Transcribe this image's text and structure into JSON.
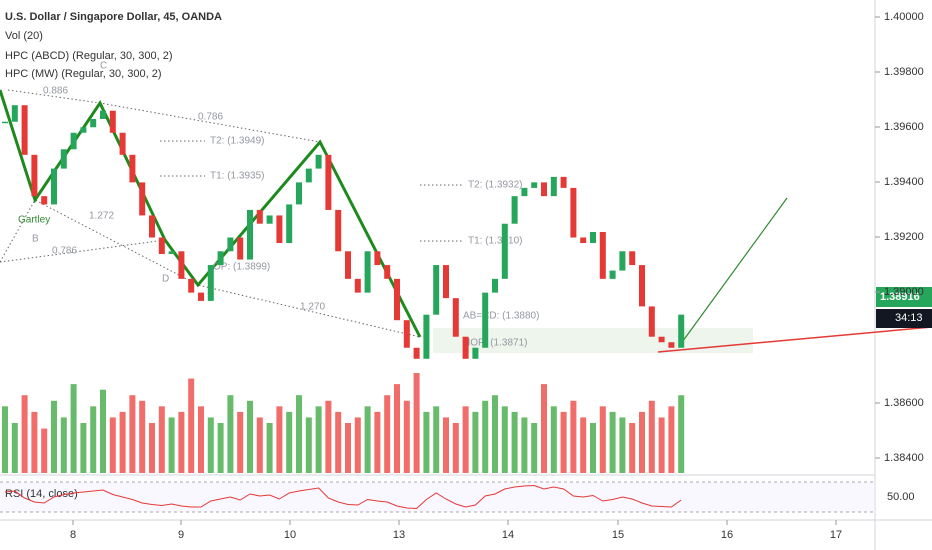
{
  "chart_data": {
    "type": "candlestick",
    "header": [
      "U.S. Dollar / Singapore Dollar, 45, OANDA",
      "Vol (20)",
      "HPC (ABCD) (Regular, 30, 300, 2)",
      "HPC (MW) (Regular, 30, 300, 2)"
    ],
    "price_labels": [
      "1.40000",
      "1.39800",
      "1.39600",
      "1.39400",
      "1.39200",
      "1.39000",
      "1.38600",
      "1.38400"
    ],
    "time_labels": [
      "8",
      "9",
      "10",
      "13",
      "14",
      "15",
      "16",
      "17"
    ],
    "pattern_labels": [
      "0.886",
      "C",
      "0.786",
      "T2: (1.3949)",
      "T1: (1.3935)",
      "Gartley",
      "B",
      "1.272",
      "0.786",
      "D",
      "OP: (1.3899)",
      "1.270",
      "T2: (1.3932)",
      "T1: (1.3910)",
      "AB=CD: (1.3880)",
      "HOP: (1.3871)"
    ],
    "last_price": "1.38916",
    "countdown": "34:13",
    "rsi_label": "RSI (14, close)",
    "rsi_level": "50.00",
    "ylim": [
      1.384,
      1.4
    ],
    "closes": [
      1.3962,
      1.3968,
      1.395,
      1.3935,
      1.3932,
      1.3945,
      1.3952,
      1.3958,
      1.396,
      1.3963,
      1.3966,
      1.3958,
      1.395,
      1.394,
      1.3928,
      1.392,
      1.3914,
      1.3915,
      1.3905,
      1.39,
      1.3897,
      1.391,
      1.3915,
      1.392,
      1.3912,
      1.393,
      1.3925,
      1.3928,
      1.3918,
      1.3932,
      1.394,
      1.3945,
      1.395,
      1.393,
      1.3915,
      1.3905,
      1.39,
      1.3915,
      1.391,
      1.3905,
      1.389,
      1.388,
      1.3876,
      1.3892,
      1.391,
      1.3898,
      1.3884,
      1.3876,
      1.388,
      1.39,
      1.3905,
      1.3925,
      1.3935,
      1.3938,
      1.394,
      1.3935,
      1.3942,
      1.3938,
      1.392,
      1.3918,
      1.3922,
      1.3905,
      1.3908,
      1.3915,
      1.391,
      1.3895,
      1.3884,
      1.3882,
      1.388,
      1.3892
    ],
    "volumes": [
      60,
      45,
      70,
      55,
      40,
      65,
      50,
      80,
      45,
      60,
      75,
      50,
      55,
      70,
      65,
      45,
      60,
      50,
      55,
      85,
      60,
      50,
      45,
      70,
      55,
      65,
      50,
      45,
      60,
      55,
      70,
      50,
      60,
      65,
      55,
      45,
      50,
      60,
      55,
      70,
      80,
      65,
      90,
      55,
      60,
      50,
      45,
      60,
      55,
      65,
      70,
      60,
      55,
      50,
      45,
      80,
      60,
      55,
      65,
      50,
      45,
      60,
      55,
      50,
      45,
      55,
      65,
      50,
      60,
      70
    ],
    "rsi": [
      60,
      62,
      48,
      40,
      38,
      50,
      55,
      58,
      60,
      62,
      64,
      55,
      50,
      45,
      38,
      35,
      33,
      36,
      32,
      30,
      30,
      42,
      46,
      50,
      44,
      56,
      52,
      54,
      46,
      58,
      62,
      65,
      68,
      48,
      40,
      35,
      34,
      45,
      42,
      40,
      32,
      28,
      27,
      45,
      58,
      46,
      36,
      30,
      34,
      52,
      56,
      66,
      70,
      72,
      73,
      66,
      70,
      66,
      52,
      50,
      53,
      42,
      45,
      50,
      46,
      38,
      32,
      31,
      30,
      44
    ]
  }
}
